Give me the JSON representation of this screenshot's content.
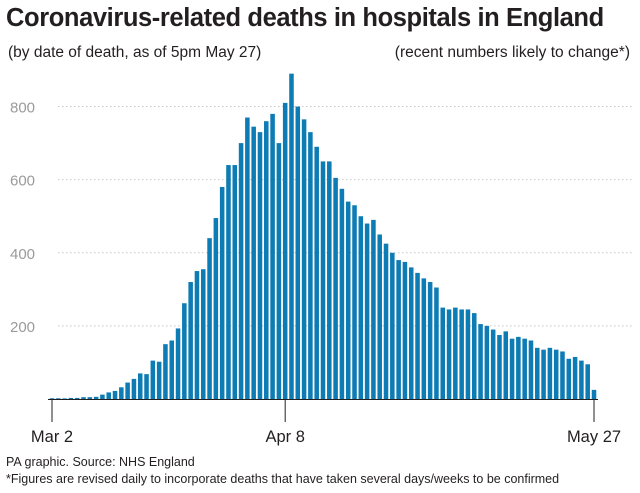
{
  "chart_data": {
    "type": "bar",
    "title": "Coronavirus-related deaths in hospitals in England",
    "subtitle_left": "(by date of death, as of 5pm May 27)",
    "subtitle_right": "(recent numbers likely to change*)",
    "xlabel": "",
    "ylabel": "",
    "ylim": [
      0,
      900
    ],
    "yticks": [
      200,
      400,
      600,
      800
    ],
    "x_tick_labels": [
      {
        "label": "Mar 2",
        "category_index": 0
      },
      {
        "label": "Apr 8",
        "category_index": 37
      },
      {
        "label": "May 27",
        "category_index": 86
      }
    ],
    "categories": [
      "Mar 2",
      "Mar 3",
      "Mar 4",
      "Mar 5",
      "Mar 6",
      "Mar 7",
      "Mar 8",
      "Mar 9",
      "Mar 10",
      "Mar 11",
      "Mar 12",
      "Mar 13",
      "Mar 14",
      "Mar 15",
      "Mar 16",
      "Mar 17",
      "Mar 18",
      "Mar 19",
      "Mar 20",
      "Mar 21",
      "Mar 22",
      "Mar 23",
      "Mar 24",
      "Mar 25",
      "Mar 26",
      "Mar 27",
      "Mar 28",
      "Mar 29",
      "Mar 30",
      "Mar 31",
      "Apr 1",
      "Apr 2",
      "Apr 3",
      "Apr 4",
      "Apr 5",
      "Apr 6",
      "Apr 7",
      "Apr 8",
      "Apr 9",
      "Apr 10",
      "Apr 11",
      "Apr 12",
      "Apr 13",
      "Apr 14",
      "Apr 15",
      "Apr 16",
      "Apr 17",
      "Apr 18",
      "Apr 19",
      "Apr 20",
      "Apr 21",
      "Apr 22",
      "Apr 23",
      "Apr 24",
      "Apr 25",
      "Apr 26",
      "Apr 27",
      "Apr 28",
      "Apr 29",
      "Apr 30",
      "May 1",
      "May 2",
      "May 3",
      "May 4",
      "May 5",
      "May 6",
      "May 7",
      "May 8",
      "May 9",
      "May 10",
      "May 11",
      "May 12",
      "May 13",
      "May 14",
      "May 15",
      "May 16",
      "May 17",
      "May 18",
      "May 19",
      "May 20",
      "May 21",
      "May 22",
      "May 23",
      "May 24",
      "May 25",
      "May 26",
      "May 27"
    ],
    "values": [
      2,
      2,
      1,
      3,
      3,
      5,
      5,
      6,
      12,
      18,
      22,
      32,
      45,
      55,
      70,
      68,
      105,
      102,
      150,
      160,
      193,
      262,
      320,
      350,
      355,
      440,
      495,
      580,
      640,
      640,
      700,
      770,
      745,
      730,
      760,
      780,
      700,
      810,
      890,
      800,
      765,
      730,
      690,
      650,
      650,
      605,
      575,
      540,
      530,
      500,
      480,
      490,
      450,
      425,
      400,
      380,
      375,
      360,
      345,
      330,
      320,
      305,
      250,
      245,
      250,
      245,
      245,
      235,
      205,
      200,
      190,
      175,
      185,
      165,
      170,
      165,
      160,
      140,
      135,
      140,
      135,
      130,
      110,
      115,
      105,
      95,
      25
    ],
    "bar_color": "#0e7cb4"
  },
  "footer": {
    "source": "PA graphic. Source: NHS England",
    "note": "*Figures are revised daily to incorporate deaths that have taken several days/weeks to be confirmed"
  }
}
